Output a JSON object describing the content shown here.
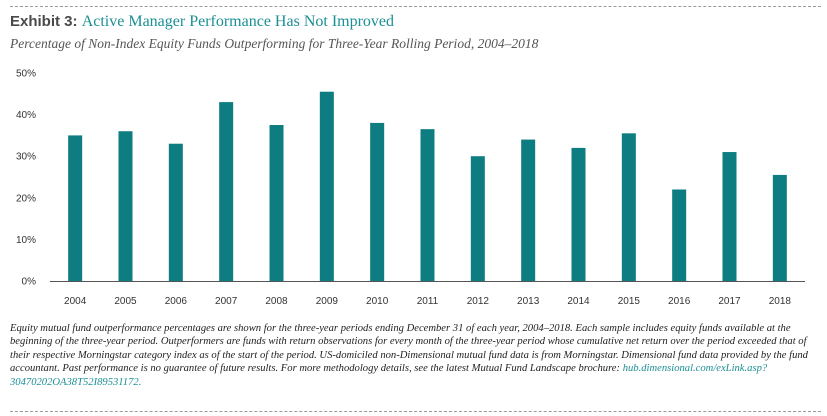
{
  "header": {
    "exhibit_label": "Exhibit 3:",
    "title": "Active Manager Performance Has Not Improved",
    "subtitle": "Percentage  of Non-Index Equity Funds Outperforming  for Three-Year  Rolling Period, 2004–2018"
  },
  "footnote": {
    "text": "Equity mutual fund outperformance percentages  are shown for the three-year periods  ending December  31 of each year, 2004–2018.  Each sample includes equity funds available at the beginning of the three-year period. Outperformers are funds with return observations  for every month  of the three-year period whose cumulative  net return over the period exceeded that of their respective  Morningstar category  index as of the start of the period. US-domiciled non-Dimensional mutual fund data is from Morningstar. Dimensional fund data provided by the fund accountant. Past performance is no guarantee of future results. For more methodology details, see the latest Mutual  Fund Landscape brochure:",
    "link": "hub.dimensional.com/exLink.asp?30470202OA38T52I89531172."
  },
  "chart_data": {
    "type": "bar",
    "categories": [
      "2004",
      "2005",
      "2006",
      "2007",
      "2008",
      "2009",
      "2010",
      "2011",
      "2012",
      "2013",
      "2014",
      "2015",
      "2016",
      "2017",
      "2018"
    ],
    "values": [
      35,
      36,
      33,
      43,
      37.5,
      45.5,
      38,
      36.5,
      30,
      34,
      32,
      35.5,
      22,
      31,
      25.5
    ],
    "ylim": [
      0,
      50
    ],
    "yticks": [
      0,
      10,
      20,
      30,
      40,
      50
    ],
    "ytick_labels": [
      "0%",
      "10%",
      "20%",
      "30%",
      "40%",
      "50%"
    ],
    "xlabel": "",
    "ylabel": "",
    "grid": false,
    "bar_color": "#0e7d82"
  }
}
